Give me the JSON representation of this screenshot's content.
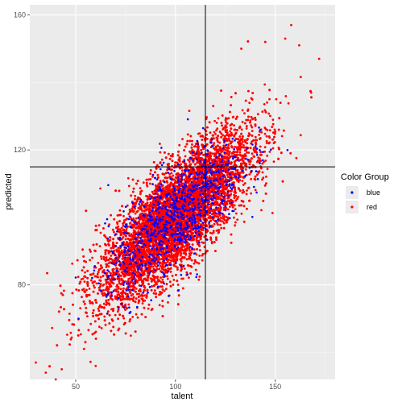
{
  "chart_data": {
    "type": "scatter",
    "xlabel": "talent",
    "ylabel": "predicted",
    "xlim": [
      27,
      180
    ],
    "ylim": [
      52,
      163
    ],
    "x_ticks": [
      50,
      100,
      150
    ],
    "y_ticks": [
      80,
      120,
      160
    ],
    "x_tick_labels": [
      "50",
      "100",
      "150"
    ],
    "y_tick_labels": [
      "80",
      "120",
      "160"
    ],
    "reference_lines": {
      "vertical_x": 115,
      "horizontal_y": 115
    },
    "grid": true,
    "legend": {
      "title": "Color Group",
      "placement": "right",
      "entries": [
        {
          "label": "blue",
          "color": "#0000ff"
        },
        {
          "label": "red",
          "color": "#ff0000"
        }
      ]
    },
    "series": [
      {
        "name": "red",
        "color": "#ff0000",
        "distribution": {
          "mean_x": 100,
          "mean_y": 100,
          "sd_x": 19,
          "sd_y": 12.5,
          "correlation": 0.78,
          "count": 9000
        },
        "outliers": [
          [
            30,
            57
          ],
          [
            35,
            54
          ],
          [
            40,
            52
          ],
          [
            43,
            55
          ],
          [
            162,
            151
          ],
          [
            172,
            147
          ],
          [
            168,
            137
          ],
          [
            155,
            153
          ],
          [
            158,
            157
          ],
          [
            145,
            152
          ],
          [
            133,
            150
          ],
          [
            60,
            56
          ]
        ]
      },
      {
        "name": "blue",
        "color": "#0000ff",
        "distribution": {
          "mean_x": 100,
          "mean_y": 100,
          "sd_x": 17,
          "sd_y": 11,
          "correlation": 0.75,
          "count": 900
        }
      }
    ]
  }
}
